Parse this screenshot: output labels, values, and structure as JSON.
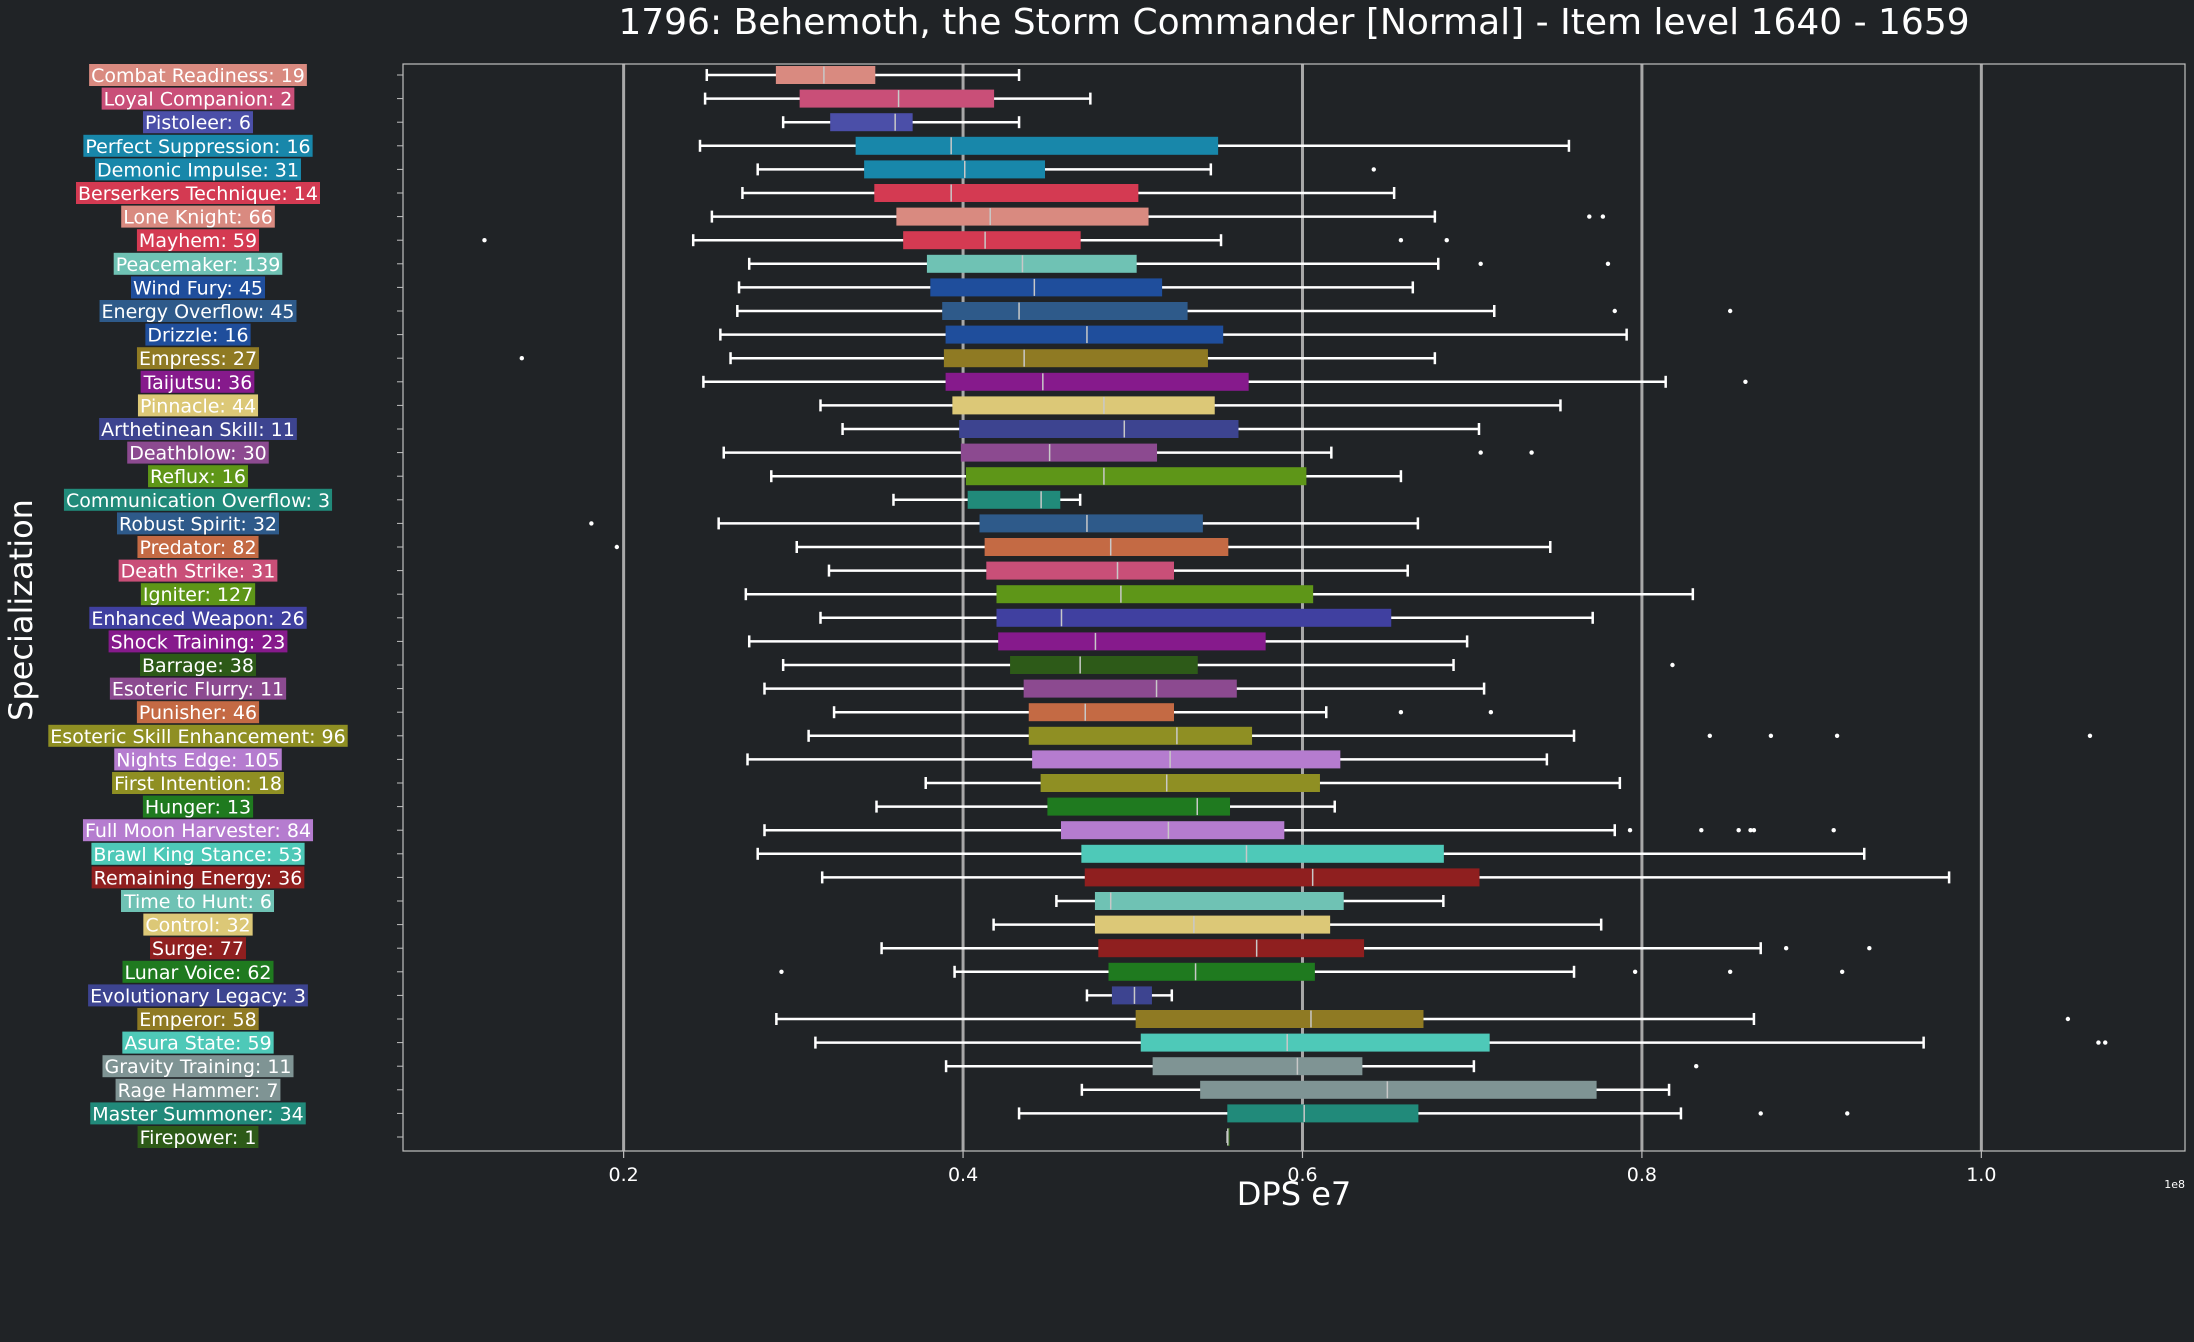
{
  "chart_data": {
    "type": "boxplot",
    "title": "1796: Behemoth, the Storm Commander [Normal] - Item level 1640 - 1659",
    "xlabel": "DPS e7",
    "ylabel": "Specialization",
    "x_offset_label": "1e8",
    "xlim": [
      0.07,
      1.12
    ],
    "xticks": [
      0.2,
      0.4,
      0.6,
      0.8,
      1.0
    ],
    "xtick_labels": [
      "0.2",
      "0.4",
      "0.6",
      "0.8",
      "1.0"
    ],
    "grid": "vertical",
    "series": [
      {
        "label": "Combat Readiness: 19",
        "color": "#d98a80",
        "whislo": 0.249,
        "q1": 0.29,
        "med": 0.318,
        "q3": 0.348,
        "whishi": 0.433,
        "fliers": []
      },
      {
        "label": "Loyal Companion: 2",
        "color": "#c94f78",
        "whislo": 0.248,
        "q1": 0.304,
        "med": 0.362,
        "q3": 0.418,
        "whishi": 0.475,
        "fliers": []
      },
      {
        "label": "Pistoleer: 6",
        "color": "#4b4fa8",
        "whislo": 0.294,
        "q1": 0.322,
        "med": 0.36,
        "q3": 0.37,
        "whishi": 0.433,
        "fliers": []
      },
      {
        "label": "Perfect Suppression: 16",
        "color": "#1887aa",
        "whislo": 0.245,
        "q1": 0.337,
        "med": 0.393,
        "q3": 0.55,
        "whishi": 0.757,
        "fliers": []
      },
      {
        "label": "Demonic Impulse: 31",
        "color": "#1887aa",
        "whislo": 0.279,
        "q1": 0.342,
        "med": 0.401,
        "q3": 0.448,
        "whishi": 0.546,
        "fliers": [
          0.642
        ]
      },
      {
        "label": "Berserkers Technique: 14",
        "color": "#d43a52",
        "whislo": 0.27,
        "q1": 0.348,
        "med": 0.393,
        "q3": 0.503,
        "whishi": 0.654,
        "fliers": []
      },
      {
        "label": "Lone Knight: 66",
        "color": "#d98a80",
        "whislo": 0.252,
        "q1": 0.361,
        "med": 0.416,
        "q3": 0.509,
        "whishi": 0.678,
        "fliers": [
          0.769,
          0.777
        ]
      },
      {
        "label": "Mayhem: 59",
        "color": "#d43a52",
        "whislo": 0.241,
        "q1": 0.365,
        "med": 0.413,
        "q3": 0.469,
        "whishi": 0.552,
        "fliers": [
          0.118,
          0.658,
          0.685
        ]
      },
      {
        "label": "Peacemaker: 139",
        "color": "#6fc2b4",
        "whislo": 0.274,
        "q1": 0.379,
        "med": 0.435,
        "q3": 0.502,
        "whishi": 0.68,
        "fliers": [
          0.705,
          0.78
        ]
      },
      {
        "label": "Wind Fury: 45",
        "color": "#1f4e9c",
        "whislo": 0.268,
        "q1": 0.381,
        "med": 0.442,
        "q3": 0.517,
        "whishi": 0.665,
        "fliers": []
      },
      {
        "label": "Energy Overflow: 45",
        "color": "#2e5a8a",
        "whislo": 0.267,
        "q1": 0.388,
        "med": 0.433,
        "q3": 0.532,
        "whishi": 0.713,
        "fliers": [
          0.784,
          0.852
        ]
      },
      {
        "label": "Drizzle: 16",
        "color": "#1f4e9c",
        "whislo": 0.257,
        "q1": 0.39,
        "med": 0.473,
        "q3": 0.553,
        "whishi": 0.791,
        "fliers": []
      },
      {
        "label": "Empress: 27",
        "color": "#8f7a23",
        "whislo": 0.263,
        "q1": 0.389,
        "med": 0.436,
        "q3": 0.544,
        "whishi": 0.678,
        "fliers": [
          0.14
        ]
      },
      {
        "label": "Taijutsu: 36",
        "color": "#861a8c",
        "whislo": 0.247,
        "q1": 0.39,
        "med": 0.447,
        "q3": 0.568,
        "whishi": 0.814,
        "fliers": [
          0.861
        ]
      },
      {
        "label": "Pinnacle: 44",
        "color": "#dcc877",
        "whislo": 0.316,
        "q1": 0.394,
        "med": 0.483,
        "q3": 0.548,
        "whishi": 0.752,
        "fliers": []
      },
      {
        "label": "Arthetinean Skill: 11",
        "color": "#3d4490",
        "whislo": 0.329,
        "q1": 0.398,
        "med": 0.495,
        "q3": 0.562,
        "whishi": 0.704,
        "fliers": []
      },
      {
        "label": "Deathblow: 30",
        "color": "#8c4a90",
        "whislo": 0.259,
        "q1": 0.399,
        "med": 0.451,
        "q3": 0.514,
        "whishi": 0.617,
        "fliers": [
          0.705,
          0.735
        ]
      },
      {
        "label": "Reflux: 16",
        "color": "#5e9618",
        "whislo": 0.287,
        "q1": 0.402,
        "med": 0.483,
        "q3": 0.602,
        "whishi": 0.658,
        "fliers": []
      },
      {
        "label": "Communication Overflow: 3",
        "color": "#218a7a",
        "whislo": 0.359,
        "q1": 0.403,
        "med": 0.446,
        "q3": 0.457,
        "whishi": 0.469,
        "fliers": []
      },
      {
        "label": "Robust Spirit: 32",
        "color": "#2e5a8a",
        "whislo": 0.256,
        "q1": 0.41,
        "med": 0.473,
        "q3": 0.541,
        "whishi": 0.668,
        "fliers": [
          0.181
        ]
      },
      {
        "label": "Predator: 82",
        "color": "#c46a44",
        "whislo": 0.302,
        "q1": 0.413,
        "med": 0.487,
        "q3": 0.556,
        "whishi": 0.746,
        "fliers": [
          0.196
        ]
      },
      {
        "label": "Death Strike: 31",
        "color": "#c94f78",
        "whislo": 0.321,
        "q1": 0.414,
        "med": 0.491,
        "q3": 0.524,
        "whishi": 0.662,
        "fliers": []
      },
      {
        "label": "Igniter: 127",
        "color": "#5e9618",
        "whislo": 0.272,
        "q1": 0.42,
        "med": 0.493,
        "q3": 0.606,
        "whishi": 0.83,
        "fliers": []
      },
      {
        "label": "Enhanced Weapon: 26",
        "color": "#4040a0",
        "whislo": 0.316,
        "q1": 0.42,
        "med": 0.458,
        "q3": 0.652,
        "whishi": 0.771,
        "fliers": []
      },
      {
        "label": "Shock Training: 23",
        "color": "#861a8c",
        "whislo": 0.274,
        "q1": 0.421,
        "med": 0.478,
        "q3": 0.578,
        "whishi": 0.697,
        "fliers": []
      },
      {
        "label": "Barrage: 38",
        "color": "#2d5a18",
        "whislo": 0.294,
        "q1": 0.428,
        "med": 0.469,
        "q3": 0.538,
        "whishi": 0.689,
        "fliers": [
          0.818
        ]
      },
      {
        "label": "Esoteric Flurry: 11",
        "color": "#8c4a90",
        "whislo": 0.283,
        "q1": 0.436,
        "med": 0.514,
        "q3": 0.561,
        "whishi": 0.707,
        "fliers": []
      },
      {
        "label": "Punisher: 46",
        "color": "#c46a44",
        "whislo": 0.324,
        "q1": 0.439,
        "med": 0.472,
        "q3": 0.524,
        "whishi": 0.614,
        "fliers": [
          0.658,
          0.711
        ]
      },
      {
        "label": "Esoteric Skill Enhancement: 96",
        "color": "#8f8f23",
        "whislo": 0.309,
        "q1": 0.439,
        "med": 0.526,
        "q3": 0.57,
        "whishi": 0.76,
        "fliers": [
          0.84,
          0.876,
          0.915,
          1.064
        ]
      },
      {
        "label": "Nights Edge: 105",
        "color": "#b57ccf",
        "whislo": 0.273,
        "q1": 0.441,
        "med": 0.522,
        "q3": 0.622,
        "whishi": 0.744,
        "fliers": []
      },
      {
        "label": "First Intention: 18",
        "color": "#8f8f23",
        "whislo": 0.378,
        "q1": 0.446,
        "med": 0.52,
        "q3": 0.61,
        "whishi": 0.787,
        "fliers": []
      },
      {
        "label": "Hunger: 13",
        "color": "#1f7a1f",
        "whislo": 0.349,
        "q1": 0.45,
        "med": 0.538,
        "q3": 0.557,
        "whishi": 0.619,
        "fliers": []
      },
      {
        "label": "Full Moon Harvester: 84",
        "color": "#b57ccf",
        "whislo": 0.283,
        "q1": 0.458,
        "med": 0.521,
        "q3": 0.589,
        "whishi": 0.784,
        "fliers": [
          0.793,
          0.835,
          0.857,
          0.864,
          0.866,
          0.913
        ]
      },
      {
        "label": "Brawl King Stance: 53",
        "color": "#4ec9b8",
        "whislo": 0.279,
        "q1": 0.47,
        "med": 0.567,
        "q3": 0.683,
        "whishi": 0.931,
        "fliers": []
      },
      {
        "label": "Remaining Energy: 36",
        "color": "#8f1f1f",
        "whislo": 0.317,
        "q1": 0.472,
        "med": 0.606,
        "q3": 0.704,
        "whishi": 0.981,
        "fliers": []
      },
      {
        "label": "Time to Hunt: 6",
        "color": "#6fc2b4",
        "whislo": 0.455,
        "q1": 0.478,
        "med": 0.487,
        "q3": 0.624,
        "whishi": 0.683,
        "fliers": []
      },
      {
        "label": "Control: 32",
        "color": "#dcc877",
        "whislo": 0.418,
        "q1": 0.478,
        "med": 0.536,
        "q3": 0.616,
        "whishi": 0.776,
        "fliers": []
      },
      {
        "label": "Surge: 77",
        "color": "#8f1f1f",
        "whislo": 0.352,
        "q1": 0.48,
        "med": 0.573,
        "q3": 0.636,
        "whishi": 0.87,
        "fliers": [
          0.885,
          0.934
        ]
      },
      {
        "label": "Lunar Voice: 62",
        "color": "#1f7a1f",
        "whislo": 0.395,
        "q1": 0.486,
        "med": 0.537,
        "q3": 0.607,
        "whishi": 0.76,
        "fliers": [
          0.293,
          0.796,
          0.852,
          0.918
        ]
      },
      {
        "label": "Evolutionary Legacy: 3",
        "color": "#3d4490",
        "whislo": 0.473,
        "q1": 0.488,
        "med": 0.501,
        "q3": 0.511,
        "whishi": 0.523,
        "fliers": []
      },
      {
        "label": "Emperor: 58",
        "color": "#8f7a23",
        "whislo": 0.29,
        "q1": 0.502,
        "med": 0.605,
        "q3": 0.671,
        "whishi": 0.866,
        "fliers": [
          1.051
        ]
      },
      {
        "label": "Asura State: 59",
        "color": "#4ec9b8",
        "whislo": 0.313,
        "q1": 0.505,
        "med": 0.591,
        "q3": 0.71,
        "whishi": 0.966,
        "fliers": [
          1.069,
          1.073
        ]
      },
      {
        "label": "Gravity Training: 11",
        "color": "#7f9494",
        "whislo": 0.39,
        "q1": 0.512,
        "med": 0.597,
        "q3": 0.635,
        "whishi": 0.701,
        "fliers": [
          0.832
        ]
      },
      {
        "label": "Rage Hammer: 7",
        "color": "#7f9494",
        "whislo": 0.47,
        "q1": 0.54,
        "med": 0.65,
        "q3": 0.773,
        "whishi": 0.816,
        "fliers": []
      },
      {
        "label": "Master Summoner: 34",
        "color": "#218a7a",
        "whislo": 0.433,
        "q1": 0.556,
        "med": 0.601,
        "q3": 0.668,
        "whishi": 0.823,
        "fliers": [
          0.87,
          0.921
        ]
      },
      {
        "label": "Firepower: 1",
        "color": "#2d5a18",
        "whislo": 0.556,
        "q1": 0.556,
        "med": 0.556,
        "q3": 0.556,
        "whishi": 0.556,
        "fliers": []
      }
    ]
  }
}
